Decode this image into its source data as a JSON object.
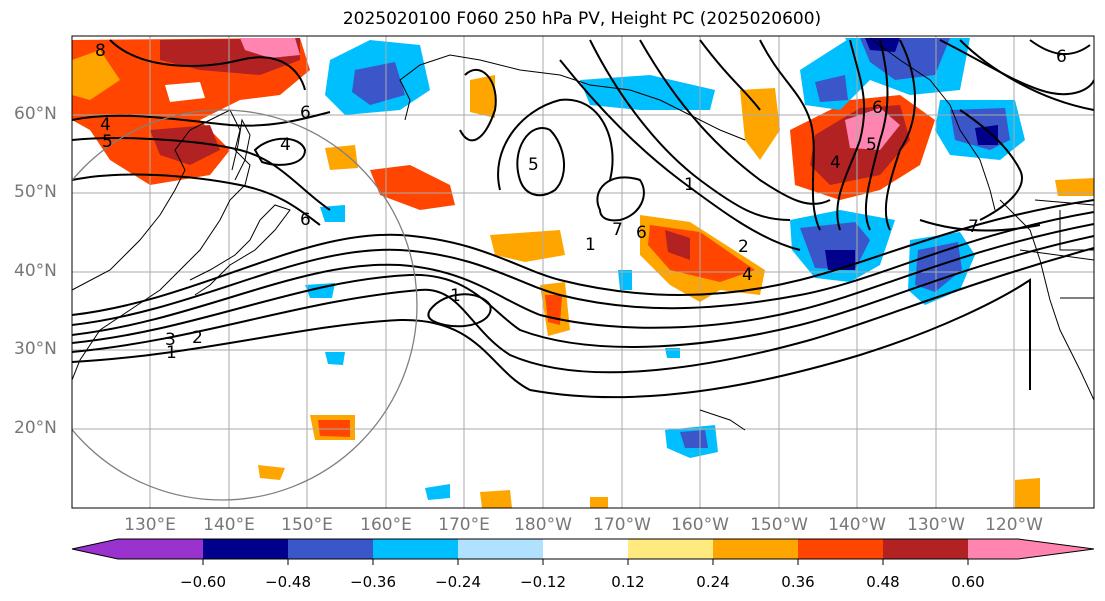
{
  "title": "2025020100 F060 250 hPa PV, Height PC (2025020600)",
  "lat_labels": [
    "60°N",
    "50°N",
    "40°N",
    "30°N",
    "20°N"
  ],
  "lon_labels": [
    "130°E",
    "140°E",
    "150°E",
    "160°E",
    "170°E",
    "180°W",
    "170°W",
    "160°W",
    "150°W",
    "140°W",
    "130°W",
    "120°W"
  ],
  "colorbar": {
    "ticks": [
      "−0.60",
      "−0.48",
      "−0.36",
      "−0.24",
      "−0.12",
      "0.12",
      "0.24",
      "0.36",
      "0.48",
      "0.60"
    ],
    "colors": [
      "#9a32cd",
      "#00008b",
      "#3a56c8",
      "#00bfff",
      "#b0e2ff",
      "#ffffff",
      "#ffea80",
      "#ffa500",
      "#ff4500",
      "#b22222",
      "#ff85b0"
    ]
  },
  "contour_labels": [
    "8",
    "5",
    "4",
    "6",
    "4",
    "6",
    "1",
    "3",
    "2",
    "1",
    "1",
    "5",
    "7",
    "6",
    "1",
    "2",
    "4",
    "6",
    "4",
    "5",
    "7",
    "6"
  ]
}
